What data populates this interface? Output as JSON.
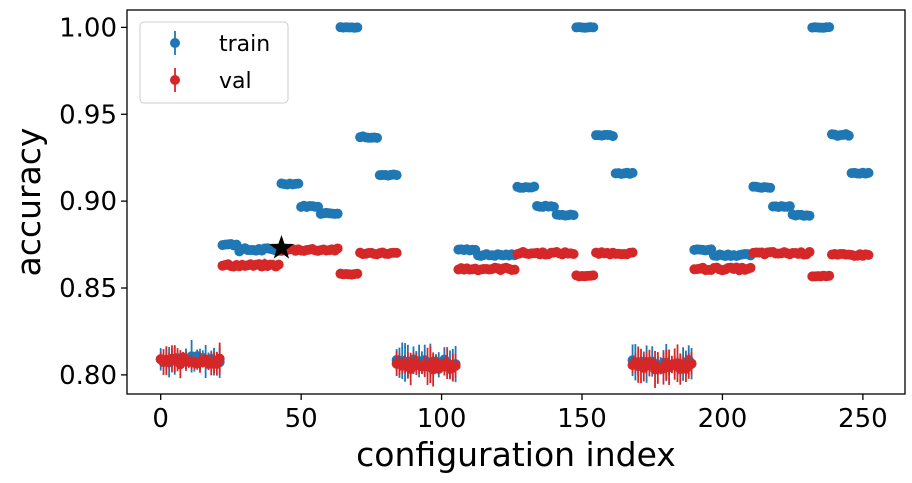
{
  "chart_data": {
    "type": "scatter",
    "xlabel": "configuration index",
    "ylabel": "accuracy",
    "xlim": [
      -12,
      265
    ],
    "ylim": [
      0.789,
      1.01
    ],
    "xticks": [
      0,
      50,
      100,
      150,
      200,
      250
    ],
    "yticks": [
      0.8,
      0.85,
      0.9,
      0.95,
      1.0
    ],
    "ytick_labels": [
      "0.80",
      "0.85",
      "0.90",
      "0.95",
      "1.00"
    ],
    "error_bars": true,
    "legend_position": "top-left",
    "series": [
      {
        "name": "train",
        "color": "#1f77b4",
        "segments": [
          {
            "x_start": 0,
            "x_end": 21,
            "y": 0.809,
            "err": 0.006,
            "wiggle": 0.002
          },
          {
            "x_start": 22,
            "x_end": 27,
            "y": 0.875,
            "err": 0.0005,
            "wiggle": 0.0006
          },
          {
            "x_start": 28,
            "x_end": 42,
            "y": 0.872,
            "err": 0.0005,
            "wiggle": 0.001
          },
          {
            "x_start": 43,
            "x_end": 49,
            "y": 0.91,
            "err": 0.0005,
            "wiggle": 0.0004
          },
          {
            "x_start": 50,
            "x_end": 56,
            "y": 0.897,
            "err": 0.0005,
            "wiggle": 0.0004
          },
          {
            "x_start": 57,
            "x_end": 63,
            "y": 0.893,
            "err": 0.0005,
            "wiggle": 0.0004
          },
          {
            "x_start": 64,
            "x_end": 70,
            "y": 1.0,
            "err": 0.0003,
            "wiggle": 0.0002
          },
          {
            "x_start": 71,
            "x_end": 77,
            "y": 0.937,
            "err": 0.0005,
            "wiggle": 0.0006
          },
          {
            "x_start": 78,
            "x_end": 84,
            "y": 0.915,
            "err": 0.0005,
            "wiggle": 0.0004
          },
          {
            "x_start": 84,
            "x_end": 105,
            "y": 0.807,
            "err": 0.007,
            "wiggle": 0.002
          },
          {
            "x_start": 106,
            "x_end": 112,
            "y": 0.872,
            "err": 0.0005,
            "wiggle": 0.0004
          },
          {
            "x_start": 113,
            "x_end": 126,
            "y": 0.869,
            "err": 0.0005,
            "wiggle": 0.0006
          },
          {
            "x_start": 127,
            "x_end": 133,
            "y": 0.908,
            "err": 0.0005,
            "wiggle": 0.0004
          },
          {
            "x_start": 134,
            "x_end": 140,
            "y": 0.897,
            "err": 0.0005,
            "wiggle": 0.0004
          },
          {
            "x_start": 141,
            "x_end": 147,
            "y": 0.892,
            "err": 0.0005,
            "wiggle": 0.0004
          },
          {
            "x_start": 148,
            "x_end": 154,
            "y": 1.0,
            "err": 0.0003,
            "wiggle": 0.0002
          },
          {
            "x_start": 155,
            "x_end": 161,
            "y": 0.938,
            "err": 0.0005,
            "wiggle": 0.0006
          },
          {
            "x_start": 162,
            "x_end": 168,
            "y": 0.916,
            "err": 0.0005,
            "wiggle": 0.0004
          },
          {
            "x_start": 168,
            "x_end": 189,
            "y": 0.807,
            "err": 0.007,
            "wiggle": 0.002
          },
          {
            "x_start": 190,
            "x_end": 196,
            "y": 0.872,
            "err": 0.0005,
            "wiggle": 0.0004
          },
          {
            "x_start": 197,
            "x_end": 210,
            "y": 0.869,
            "err": 0.0005,
            "wiggle": 0.0006
          },
          {
            "x_start": 211,
            "x_end": 217,
            "y": 0.908,
            "err": 0.0005,
            "wiggle": 0.0004
          },
          {
            "x_start": 218,
            "x_end": 224,
            "y": 0.897,
            "err": 0.0005,
            "wiggle": 0.0004
          },
          {
            "x_start": 225,
            "x_end": 231,
            "y": 0.892,
            "err": 0.0005,
            "wiggle": 0.0004
          },
          {
            "x_start": 232,
            "x_end": 238,
            "y": 1.0,
            "err": 0.0003,
            "wiggle": 0.0002
          },
          {
            "x_start": 239,
            "x_end": 245,
            "y": 0.938,
            "err": 0.0005,
            "wiggle": 0.0006
          },
          {
            "x_start": 246,
            "x_end": 252,
            "y": 0.916,
            "err": 0.0005,
            "wiggle": 0.0004
          }
        ]
      },
      {
        "name": "val",
        "color": "#d62728",
        "segments": [
          {
            "x_start": 0,
            "x_end": 21,
            "y": 0.808,
            "err": 0.006,
            "wiggle": 0.002
          },
          {
            "x_start": 22,
            "x_end": 42,
            "y": 0.863,
            "err": 0.002,
            "wiggle": 0.0008
          },
          {
            "x_start": 43,
            "x_end": 63,
            "y": 0.872,
            "err": 0.001,
            "wiggle": 0.0008
          },
          {
            "x_start": 64,
            "x_end": 70,
            "y": 0.858,
            "err": 0.001,
            "wiggle": 0.0004
          },
          {
            "x_start": 71,
            "x_end": 84,
            "y": 0.87,
            "err": 0.001,
            "wiggle": 0.0006
          },
          {
            "x_start": 84,
            "x_end": 105,
            "y": 0.805,
            "err": 0.007,
            "wiggle": 0.002
          },
          {
            "x_start": 106,
            "x_end": 126,
            "y": 0.861,
            "err": 0.001,
            "wiggle": 0.0008
          },
          {
            "x_start": 127,
            "x_end": 147,
            "y": 0.87,
            "err": 0.001,
            "wiggle": 0.0008
          },
          {
            "x_start": 148,
            "x_end": 154,
            "y": 0.857,
            "err": 0.001,
            "wiggle": 0.0004
          },
          {
            "x_start": 155,
            "x_end": 168,
            "y": 0.87,
            "err": 0.001,
            "wiggle": 0.0006
          },
          {
            "x_start": 168,
            "x_end": 189,
            "y": 0.805,
            "err": 0.007,
            "wiggle": 0.002
          },
          {
            "x_start": 190,
            "x_end": 210,
            "y": 0.861,
            "err": 0.001,
            "wiggle": 0.0008
          },
          {
            "x_start": 211,
            "x_end": 231,
            "y": 0.87,
            "err": 0.001,
            "wiggle": 0.0008
          },
          {
            "x_start": 232,
            "x_end": 238,
            "y": 0.857,
            "err": 0.001,
            "wiggle": 0.0004
          },
          {
            "x_start": 239,
            "x_end": 252,
            "y": 0.869,
            "err": 0.001,
            "wiggle": 0.0006
          }
        ]
      }
    ],
    "annotations": [
      {
        "type": "star-marker",
        "x": 43,
        "y": 0.873,
        "color": "#000000"
      }
    ]
  }
}
